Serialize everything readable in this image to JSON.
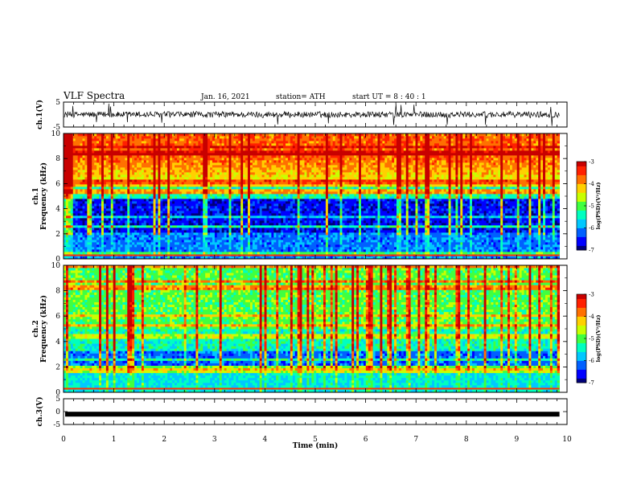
{
  "header": {
    "title": "VLF Spectra",
    "date": "Jan. 16, 2021",
    "station": "station= ATH",
    "start": "start  UT =  8 : 40 : 1"
  },
  "colormap": [
    "#00007a",
    "#0000ff",
    "#0060ff",
    "#00c8ff",
    "#00ffc0",
    "#40ff40",
    "#c8ff00",
    "#ffd000",
    "#ff7000",
    "#ff2000",
    "#c80000"
  ],
  "chart_data": [
    {
      "type": "line",
      "ylabel": "ch.1(V)",
      "ylim": [
        -5,
        5
      ],
      "yticks": [
        "5",
        "-5"
      ],
      "xlim": [
        0,
        10
      ],
      "note_values": "waveform approximately -1.5 to 1.5 V with spikes up to ~4.5 V"
    },
    {
      "type": "heatmap",
      "ylabel": "ch.1\nFrequency (kHz)",
      "ylabel_lines": [
        "ch.1",
        "Frequency (kHz)"
      ],
      "ylim": [
        0,
        10
      ],
      "yticks": [
        "0",
        "2",
        "4",
        "6",
        "8",
        "10"
      ],
      "xlim": [
        0,
        10
      ],
      "colorbar": {
        "label": "log(PSD)(V²/Hz)",
        "range": [
          -7,
          -3
        ],
        "ticks": [
          "-3",
          "-4",
          "-5",
          "-6",
          "-7"
        ]
      }
    },
    {
      "type": "heatmap",
      "ylabel": "ch.2\nFrequency (kHz)",
      "ylabel_lines": [
        "ch.2",
        "Frequency (kHz)"
      ],
      "ylim": [
        0,
        10
      ],
      "yticks": [
        "0",
        "2",
        "4",
        "6",
        "8",
        "10"
      ],
      "xlim": [
        0,
        10
      ],
      "colorbar": {
        "label": "log(PSD)(V²/Hz)",
        "range": [
          -7,
          -3
        ],
        "ticks": [
          "-3",
          "-4",
          "-5",
          "-6",
          "-7"
        ]
      }
    },
    {
      "type": "line",
      "ylabel": "ch.3(V)",
      "ylim": [
        -5,
        5
      ],
      "yticks": [
        "5",
        "0",
        "-5"
      ],
      "xlim": [
        0,
        10
      ],
      "note_values": "constant ≈ -1 V"
    }
  ],
  "xaxis": {
    "label": "Time (min)",
    "ticks": [
      "0",
      "1",
      "2",
      "3",
      "4",
      "5",
      "6",
      "7",
      "8",
      "9",
      "10"
    ],
    "data_end": 9.85
  }
}
